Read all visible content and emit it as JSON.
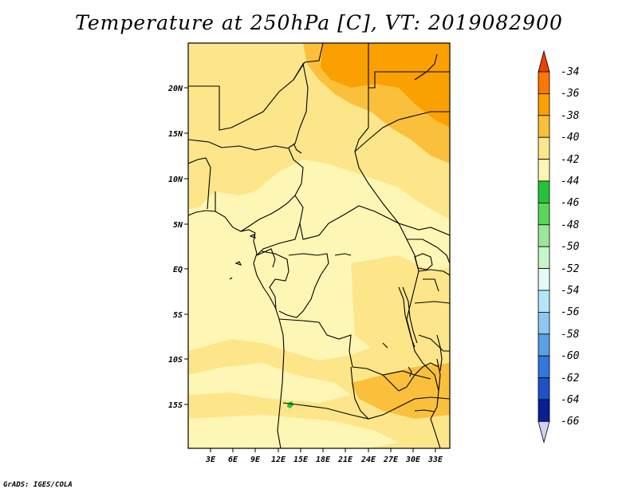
{
  "title": "Temperature at 250hPa [C], VT: 2019082900",
  "credit": "GrADS: IGES/COLA",
  "x_axis": {
    "labels": [
      "3E",
      "6E",
      "9E",
      "12E",
      "15E",
      "18E",
      "21E",
      "24E",
      "27E",
      "30E",
      "33E"
    ]
  },
  "y_axis": {
    "labels": [
      "20N",
      "15N",
      "10N",
      "5N",
      "EQ",
      "5S",
      "10S",
      "15S"
    ]
  },
  "colorbar": {
    "labels": [
      "-34",
      "-36",
      "-38",
      "-40",
      "-42",
      "-44",
      "-46",
      "-48",
      "-50",
      "-52",
      "-54",
      "-56",
      "-58",
      "-60",
      "-62",
      "-64",
      "-66"
    ],
    "colors": [
      "#f04000",
      "#fa7800",
      "#faa000",
      "#fac03c",
      "#fde68a",
      "#fef6b4",
      "#27c33a",
      "#5ad65a",
      "#9be69b",
      "#c8f5c8",
      "#e6fafa",
      "#b4e6fa",
      "#8cc8f0",
      "#5aa0e6",
      "#3278dc",
      "#1e50c8",
      "#0a1e96",
      "#000064",
      "#d2d2f5"
    ],
    "over_color": "#f04000",
    "under_color": "#d2d2f5"
  },
  "map_colors": {
    "base": "#fef6b4",
    "band_40_42": "#fde68a",
    "band_38_40": "#fac03c",
    "band_36_38": "#faa000",
    "spot_44_46": "#27c33a"
  }
}
